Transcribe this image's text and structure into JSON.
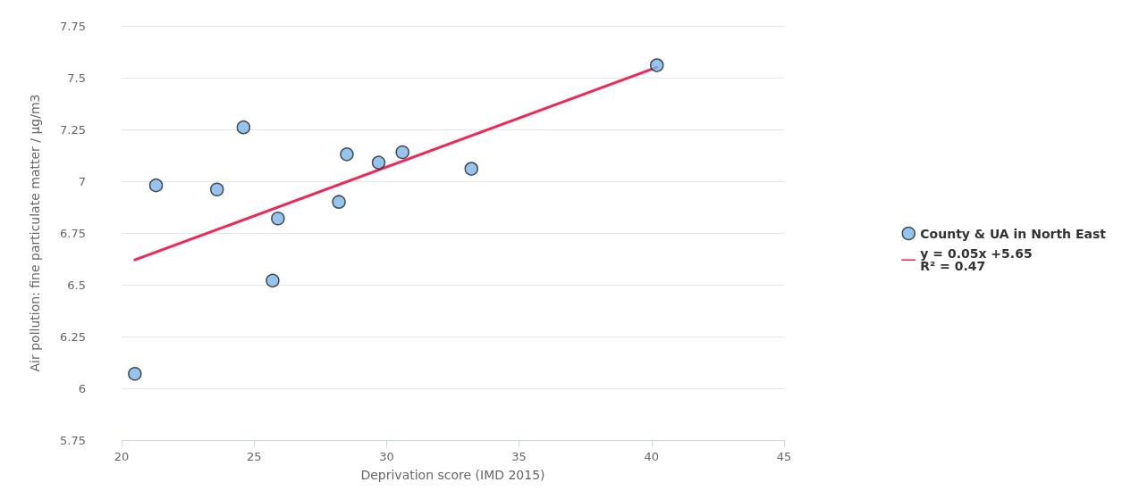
{
  "chart_data": {
    "type": "scatter",
    "xlabel": "Deprivation score (IMD 2015)",
    "ylabel": "Air pollution: fine particulate matter / µg/m3",
    "xlim": [
      20,
      45
    ],
    "xticks": [
      20,
      25,
      30,
      35,
      40,
      45
    ],
    "ylim": [
      5.75,
      7.75
    ],
    "yticks": [
      5.75,
      6,
      6.25,
      6.5,
      6.75,
      7,
      7.25,
      7.5,
      7.75
    ],
    "grid": "y",
    "legend": "right",
    "marker": "circle",
    "series": [
      {
        "name": "County & UA in North East",
        "color": "#7cb5ec",
        "x": [
          20.5,
          21.3,
          23.6,
          24.6,
          25.7,
          25.9,
          28.2,
          28.5,
          29.7,
          30.6,
          33.2,
          40.2
        ],
        "values": [
          6.07,
          6.98,
          6.96,
          7.26,
          6.52,
          6.82,
          6.9,
          7.13,
          7.09,
          7.14,
          7.06,
          7.56
        ]
      },
      {
        "name": "y = 0.05x +5.65\nR² = 0.47",
        "type": "line",
        "color": "#f0285a",
        "line_style": "solid",
        "marker": "none",
        "x": [
          20.5,
          40.2
        ],
        "values": [
          6.62,
          7.55
        ]
      }
    ]
  }
}
